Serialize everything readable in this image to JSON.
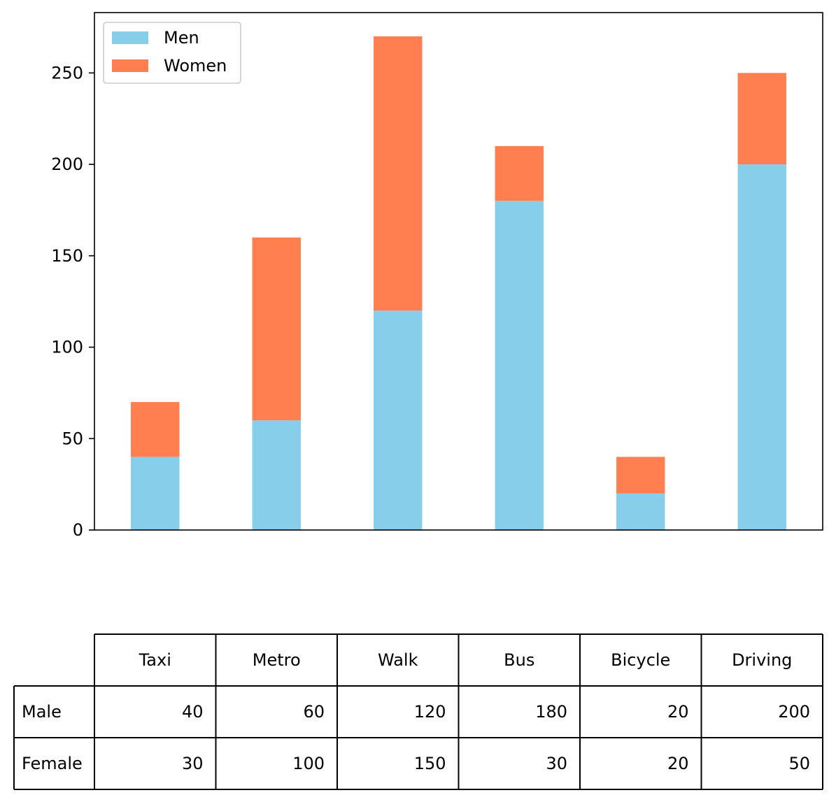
{
  "chart_data": {
    "type": "bar",
    "stacked": true,
    "categories": [
      "Taxi",
      "Metro",
      "Walk",
      "Bus",
      "Bicycle",
      "Driving"
    ],
    "series": [
      {
        "name": "Men",
        "values": [
          40,
          60,
          120,
          180,
          20,
          200
        ],
        "color": "#87CEEB"
      },
      {
        "name": "Women",
        "values": [
          30,
          100,
          150,
          30,
          20,
          50
        ],
        "color": "#FF7F50"
      }
    ],
    "ylim": [
      0,
      283
    ],
    "yticks": [
      0,
      50,
      100,
      150,
      200,
      250
    ],
    "legend_position": "upper-left",
    "grid": false,
    "title": "",
    "xlabel": "",
    "ylabel": "",
    "table": {
      "col_labels": [
        "Taxi",
        "Metro",
        "Walk",
        "Bus",
        "Bicycle",
        "Driving"
      ],
      "rows": [
        {
          "label": "Male",
          "values": [
            "40",
            "60",
            "120",
            "180",
            "20",
            "200"
          ]
        },
        {
          "label": "Female",
          "values": [
            "30",
            "100",
            "150",
            "30",
            "20",
            "50"
          ]
        }
      ]
    }
  }
}
